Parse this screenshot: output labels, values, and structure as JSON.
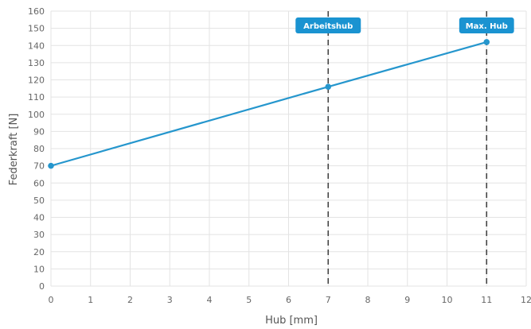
{
  "chart_data": {
    "type": "line",
    "xlabel": "Hub [mm]",
    "ylabel": "Federkraft [N]",
    "xlim": [
      0,
      12
    ],
    "ylim": [
      0,
      160
    ],
    "x_ticks": [
      "0",
      "1",
      "2",
      "3",
      "4",
      "5",
      "6",
      "7",
      "8",
      "9",
      "10",
      "11",
      "12"
    ],
    "y_ticks": [
      "0",
      "10",
      "20",
      "30",
      "40",
      "50",
      "60",
      "70",
      "80",
      "90",
      "100",
      "110",
      "120",
      "130",
      "140",
      "150",
      "160"
    ],
    "grid": true,
    "series": [
      {
        "color": "#2596cd",
        "points": [
          {
            "x": 0,
            "y": 70
          },
          {
            "x": 7,
            "y": 116
          },
          {
            "x": 11,
            "y": 142
          }
        ]
      }
    ],
    "annotations": [
      {
        "label": "Arbeitshub",
        "x": 7,
        "color": "#1a93d1"
      },
      {
        "label": "Max. Hub",
        "x": 11,
        "color": "#1a93d1"
      }
    ]
  }
}
